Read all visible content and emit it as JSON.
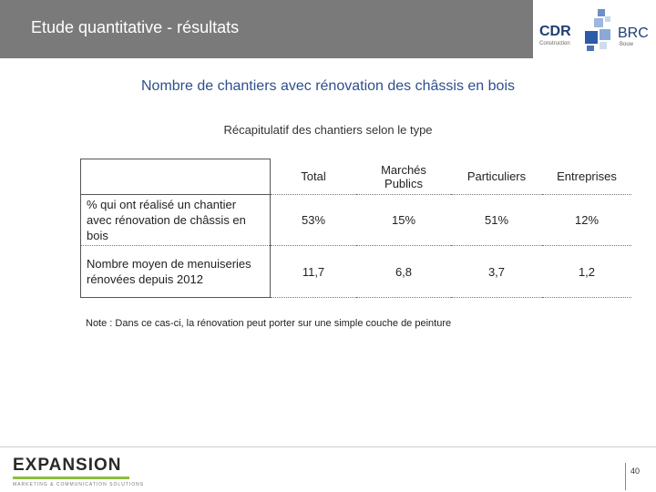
{
  "header": {
    "title": "Etude quantitative - résultats"
  },
  "logo": {
    "cdr": "CDR",
    "cdr_sub": "Construction",
    "brc": "BRC",
    "brc_sub": "Bouw"
  },
  "main": {
    "title": "Nombre de chantiers avec rénovation des châssis en bois",
    "subtitle": "Récapitulatif des chantiers selon le type",
    "table": {
      "columns": [
        "Total",
        "Marchés Publics",
        "Particuliers",
        "Entreprises"
      ],
      "rows": [
        {
          "label": "% qui ont réalisé un chantier avec rénovation de châssis en bois",
          "values": [
            "53%",
            "15%",
            "51%",
            "12%"
          ]
        },
        {
          "label": "Nombre moyen de menuiseries rénovées depuis 2012",
          "values": [
            "11,7",
            "6,8",
            "3,7",
            "1,2"
          ]
        }
      ]
    },
    "note": "Note : Dans ce cas-ci, la rénovation peut porter sur une simple couche de peinture"
  },
  "footer": {
    "brand": "EXPANSION",
    "tagline": "MARKETING & COMMUNICATION SOLUTIONS",
    "page_number": "40"
  },
  "colors": {
    "header_band": "#7a7a7a",
    "title_blue": "#2e4f8c",
    "logo_blue": "#1f3e73",
    "expansion_green": "#8cbf3f"
  }
}
